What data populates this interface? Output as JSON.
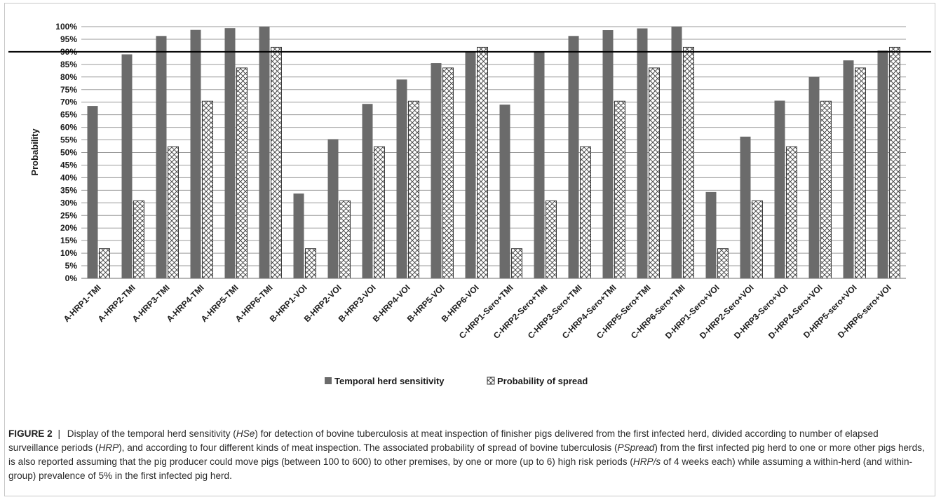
{
  "chart_data": {
    "type": "bar",
    "ylabel": "Probability",
    "xlabel": "",
    "ylim": [
      0,
      100
    ],
    "yticks": [
      "0%",
      "5%",
      "10%",
      "15%",
      "20%",
      "25%",
      "30%",
      "35%",
      "40%",
      "45%",
      "50%",
      "55%",
      "60%",
      "65%",
      "70%",
      "75%",
      "80%",
      "85%",
      "90%",
      "95%",
      "100%"
    ],
    "grid": true,
    "legend_position": "bottom",
    "reference_line": 90,
    "categories": [
      "A-HRP1-TMI",
      "A-HRP2-TMI",
      "A-HRP3-TMI",
      "A-HRP4-TMI",
      "A-HRP5-TMI",
      "A-HRP6-TMI",
      "B-HRP1-VOI",
      "B-HRP2-VOI",
      "B-HRP3-VOI",
      "B-HRP4-VOI",
      "B-HRP5-VOI",
      "B-HRP6-VOI",
      "C-HRP1-Sero+TMI",
      "C-HRP2-Sero+TMI",
      "C-HRP3-Sero+TMI",
      "C-HRP4-Sero+TMI",
      "C-HRP5-Sero+TMI",
      "C-HRP6-Sero+TMI",
      "D-HRP1-Sero+VOI",
      "D-HRP2-Sero+VOI",
      "D-HRP3-Sero+VOI",
      "D-HRP4-Sero+VOI",
      "D-HRP5-sero+VOI",
      "D-HRP6-sero+VOI"
    ],
    "series": [
      {
        "name": "Temporal herd sensitivity",
        "color": "#6b6b6b",
        "pattern": "solid",
        "values": [
          68.5,
          89,
          96.3,
          98.7,
          99.4,
          100,
          33.7,
          55.3,
          69.3,
          79,
          85.5,
          90.2,
          69,
          90,
          96.3,
          98.6,
          99.3,
          100,
          34.3,
          56.3,
          70.6,
          80,
          86.6,
          90.5
        ]
      },
      {
        "name": "Probability of spread",
        "color": "#ffffff",
        "pattern": "crosshatch",
        "values": [
          11.8,
          30.8,
          52.3,
          70.4,
          83.6,
          91.8,
          11.8,
          30.8,
          52.3,
          70.4,
          83.6,
          91.8,
          11.8,
          30.8,
          52.3,
          70.4,
          83.6,
          91.8,
          11.8,
          30.8,
          52.3,
          70.4,
          83.6,
          91.8
        ]
      }
    ]
  },
  "caption": {
    "label": "FIGURE 2",
    "separator": "|",
    "parts": [
      {
        "text": "Display of the temporal herd sensitivity (",
        "italic": false
      },
      {
        "text": "HSe",
        "italic": true
      },
      {
        "text": ") for detection of bovine tuberculosis at meat inspection of finisher pigs delivered from the first infected herd, divided according to number of elapsed surveillance periods (",
        "italic": false
      },
      {
        "text": "HRP",
        "italic": true
      },
      {
        "text": "), and according to four different kinds of meat inspection. The associated probability of spread of bovine tuberculosis (",
        "italic": false
      },
      {
        "text": "PSpread",
        "italic": true
      },
      {
        "text": ") from the first infected pig herd to one or more other pigs herds, is also reported assuming that the pig producer could move pigs (between 100 to 600) to other premises, by one or more (up to 6) high risk periods (",
        "italic": false
      },
      {
        "text": "HRP/s",
        "italic": true
      },
      {
        "text": " of 4 weeks each) while assuming a within-herd (and within-group) prevalence of 5% in the first infected pig herd.",
        "italic": false
      }
    ]
  }
}
